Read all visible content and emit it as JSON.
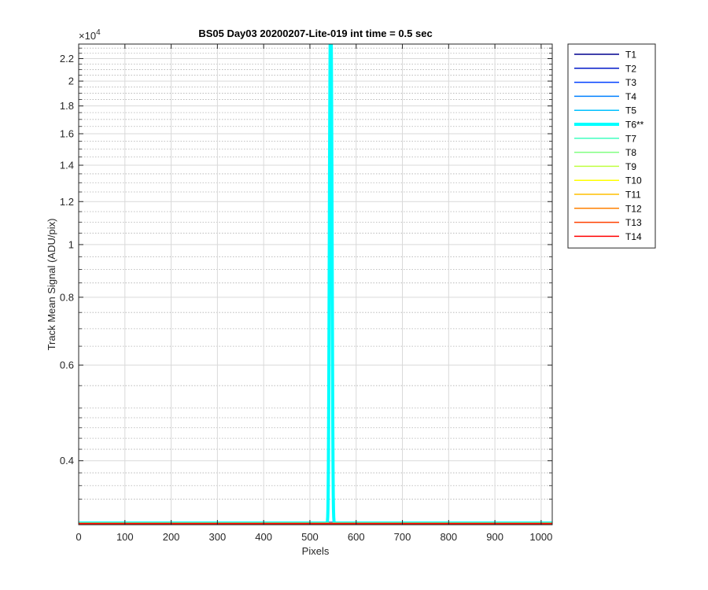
{
  "chart_data": {
    "type": "line",
    "title": "BS05 Day03 20200207-Lite-019 int time = 0.5 sec",
    "xlabel": "Pixels",
    "ylabel": "Track Mean Signal (ADU/pix)",
    "y_exponent_label": "×10",
    "y_exponent_power": "4",
    "xlim": [
      0,
      1024
    ],
    "ylim": [
      3050,
      23400
    ],
    "yscale": "log",
    "grid": true,
    "minor_grid": true,
    "legend_position": "outside-right",
    "x_ticks": [
      0,
      100,
      200,
      300,
      400,
      500,
      600,
      700,
      800,
      900,
      1000
    ],
    "x_tick_labels": [
      "0",
      "100",
      "200",
      "300",
      "400",
      "500",
      "600",
      "700",
      "800",
      "900",
      "1000"
    ],
    "y_ticks": [
      4000,
      6000,
      8000,
      10000,
      12000,
      14000,
      16000,
      18000,
      20000,
      22000
    ],
    "y_tick_labels": [
      "0.4",
      "0.6",
      "0.8",
      "1",
      "1.2",
      "1.4",
      "1.6",
      "1.8",
      "2",
      "2.2"
    ],
    "y_minor_ticks": [
      3000,
      3400,
      3600,
      3800,
      4200,
      4400,
      4600,
      4800,
      5000,
      5500,
      6500,
      7000,
      7500,
      8500,
      9000,
      9500,
      10500,
      11000,
      11500,
      12500,
      13000,
      13500,
      14500,
      15000,
      15500,
      16500,
      17000,
      17500,
      18500,
      19000,
      19500,
      20500,
      21000,
      21500,
      22500,
      23000
    ],
    "baseline": 3070,
    "series": [
      {
        "name": "T1",
        "color": "#00008f",
        "width": 1.5,
        "baseline": 3080,
        "peak": null
      },
      {
        "name": "T2",
        "color": "#0018c8",
        "width": 1.5,
        "baseline": 3078,
        "peak": null
      },
      {
        "name": "T3",
        "color": "#0040ff",
        "width": 1.5,
        "baseline": 3076,
        "peak": null
      },
      {
        "name": "T4",
        "color": "#0080ff",
        "width": 1.5,
        "baseline": 3074,
        "peak": null
      },
      {
        "name": "T5",
        "color": "#00c0ff",
        "width": 1.5,
        "baseline": 3073,
        "peak": null
      },
      {
        "name": "T6**",
        "color": "#00ffff",
        "width": 4,
        "baseline": 3072,
        "peak": {
          "center": 545,
          "half_width": 6,
          "height": 23400
        }
      },
      {
        "name": "T7",
        "color": "#40ffbf",
        "width": 1.5,
        "baseline": 3071,
        "peak": null
      },
      {
        "name": "T8",
        "color": "#80ff80",
        "width": 1.5,
        "baseline": 3070,
        "peak": null
      },
      {
        "name": "T9",
        "color": "#bfff40",
        "width": 1.5,
        "baseline": 3069,
        "peak": null
      },
      {
        "name": "T10",
        "color": "#ffff00",
        "width": 1.5,
        "baseline": 3068,
        "peak": null
      },
      {
        "name": "T11",
        "color": "#ffbf00",
        "width": 1.5,
        "baseline": 3067,
        "peak": null
      },
      {
        "name": "T12",
        "color": "#ff8000",
        "width": 1.5,
        "baseline": 3066,
        "peak": null
      },
      {
        "name": "T13",
        "color": "#ff4000",
        "width": 1.5,
        "baseline": 3065,
        "peak": null
      },
      {
        "name": "T14",
        "color": "#ff0000",
        "width": 1.5,
        "baseline": 3064,
        "peak": null
      }
    ]
  }
}
